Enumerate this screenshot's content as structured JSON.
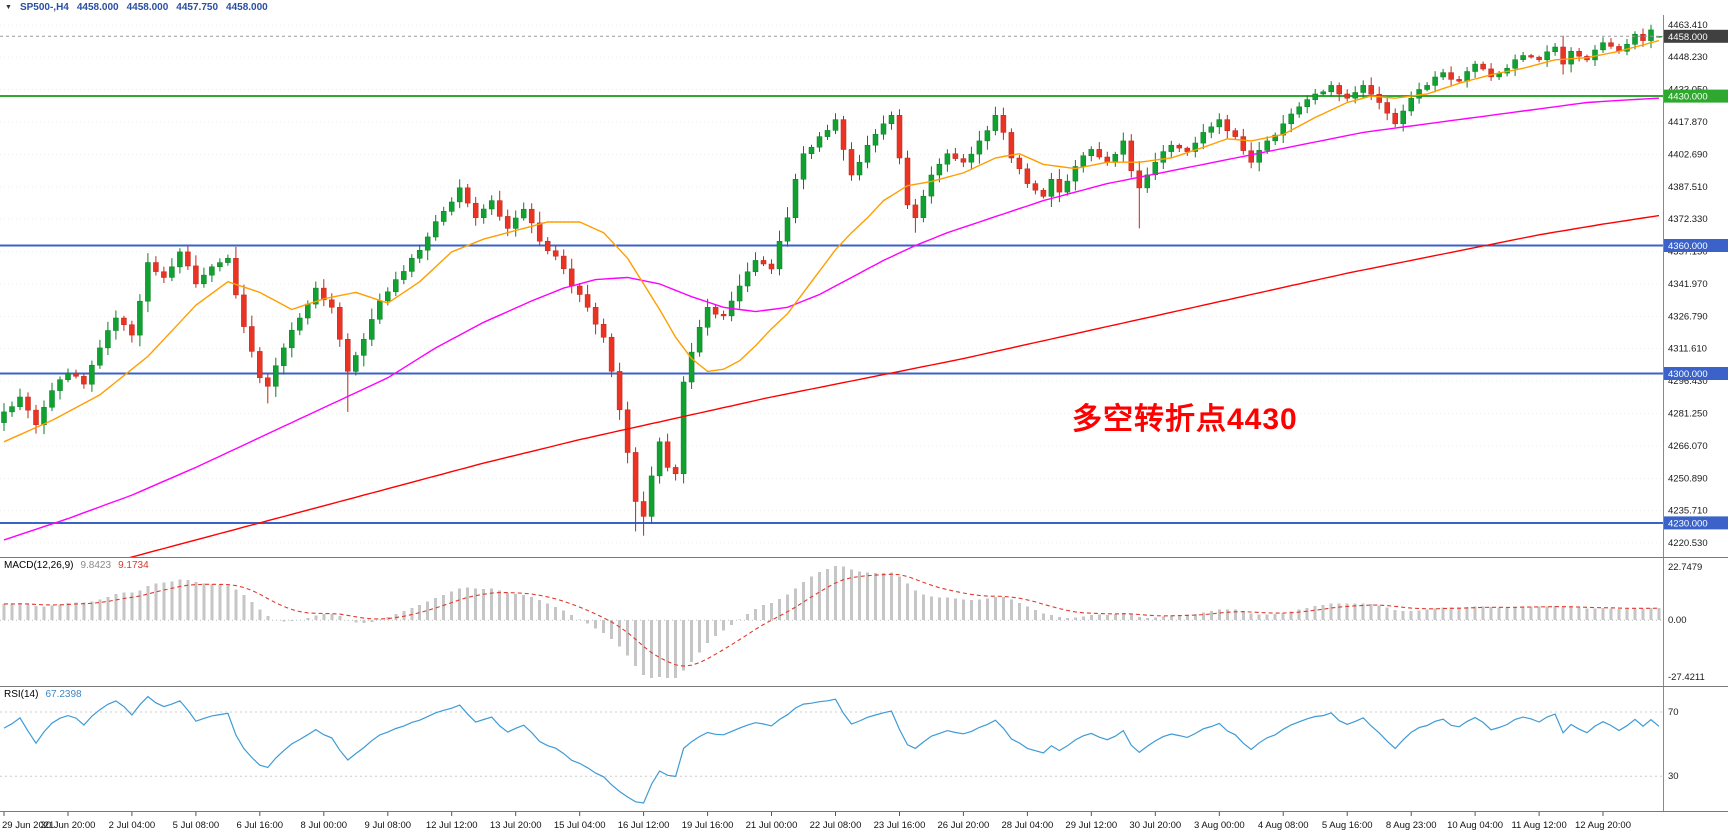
{
  "topbar": {
    "dropdown_icon": "▼",
    "symbol": "SP500-,H4",
    "open": "4458.000",
    "high": "4458.000",
    "low": "4457.750",
    "close": "4458.000"
  },
  "annotation": {
    "text": "多空转折点4430",
    "color": "#FF0000"
  },
  "chart_data": {
    "type": "candlestick",
    "symbol": "SP500-",
    "timeframe": "H4",
    "bars": 208,
    "price_range": [
      4214,
      4468
    ],
    "price_axis_labels": [
      "4463.410",
      "4448.230",
      "4433.050",
      "4417.870",
      "4402.690",
      "4387.510",
      "4372.330",
      "4357.150",
      "4341.970",
      "4326.790",
      "4311.610",
      "4296.430",
      "4281.250",
      "4266.070",
      "4250.890",
      "4235.710",
      "4220.530"
    ],
    "hlines": [
      {
        "price": 4458.0,
        "label": "4458.000",
        "role": "current-price",
        "line_color": "#9a9a9a",
        "tag_color": "#404040",
        "width": 1,
        "dash": "3,3"
      },
      {
        "price": 4430.0,
        "label": "4430.000",
        "role": "level",
        "line_color": "#2EA82E",
        "tag_color": "#2EA82E",
        "width": 2
      },
      {
        "price": 4360.0,
        "label": "4360.000",
        "role": "level",
        "line_color": "#3A62C8",
        "tag_color": "#3A62C8",
        "width": 2
      },
      {
        "price": 4300.0,
        "label": "4300.000",
        "role": "level",
        "line_color": "#3A62C8",
        "tag_color": "#3A62C8",
        "width": 2
      },
      {
        "price": 4230.0,
        "label": "4230.000",
        "role": "level",
        "line_color": "#3A62C8",
        "tag_color": "#3A62C8",
        "width": 2
      }
    ],
    "close_anchors": [
      [
        0,
        4282
      ],
      [
        2,
        4289
      ],
      [
        4,
        4276
      ],
      [
        6,
        4292
      ],
      [
        8,
        4300
      ],
      [
        10,
        4295
      ],
      [
        12,
        4312
      ],
      [
        14,
        4326
      ],
      [
        16,
        4318
      ],
      [
        18,
        4352
      ],
      [
        20,
        4345
      ],
      [
        22,
        4357
      ],
      [
        24,
        4342
      ],
      [
        26,
        4350
      ],
      [
        28,
        4354
      ],
      [
        30,
        4322
      ],
      [
        32,
        4298
      ],
      [
        33,
        4294
      ],
      [
        35,
        4312
      ],
      [
        37,
        4326
      ],
      [
        39,
        4340
      ],
      [
        41,
        4331
      ],
      [
        42,
        4316
      ],
      [
        43,
        4301
      ],
      [
        45,
        4316
      ],
      [
        47,
        4334
      ],
      [
        49,
        4344
      ],
      [
        51,
        4354
      ],
      [
        53,
        4364
      ],
      [
        55,
        4376
      ],
      [
        57,
        4387
      ],
      [
        59,
        4373
      ],
      [
        61,
        4381
      ],
      [
        63,
        4368
      ],
      [
        65,
        4377
      ],
      [
        67,
        4362
      ],
      [
        69,
        4355
      ],
      [
        71,
        4341
      ],
      [
        73,
        4331
      ],
      [
        75,
        4317
      ],
      [
        76,
        4301
      ],
      [
        77,
        4283
      ],
      [
        78,
        4263
      ],
      [
        79,
        4240
      ],
      [
        80,
        4233
      ],
      [
        81,
        4252
      ],
      [
        82,
        4268
      ],
      [
        83,
        4256
      ],
      [
        84,
        4253
      ],
      [
        85,
        4296
      ],
      [
        86,
        4310
      ],
      [
        88,
        4331
      ],
      [
        90,
        4327
      ],
      [
        92,
        4341
      ],
      [
        94,
        4353
      ],
      [
        96,
        4349
      ],
      [
        97,
        4362
      ],
      [
        98,
        4373
      ],
      [
        99,
        4391
      ],
      [
        100,
        4403
      ],
      [
        102,
        4411
      ],
      [
        104,
        4419
      ],
      [
        105,
        4405
      ],
      [
        106,
        4393
      ],
      [
        107,
        4399
      ],
      [
        108,
        4407
      ],
      [
        110,
        4417
      ],
      [
        111,
        4421
      ],
      [
        112,
        4401
      ],
      [
        113,
        4379
      ],
      [
        114,
        4373
      ],
      [
        116,
        4393
      ],
      [
        118,
        4403
      ],
      [
        120,
        4399
      ],
      [
        122,
        4409
      ],
      [
        124,
        4421
      ],
      [
        125,
        4413
      ],
      [
        126,
        4401
      ],
      [
        128,
        4389
      ],
      [
        130,
        4383
      ],
      [
        131,
        4391
      ],
      [
        132,
        4385
      ],
      [
        134,
        4397
      ],
      [
        136,
        4405
      ],
      [
        138,
        4399
      ],
      [
        140,
        4409
      ],
      [
        141,
        4395
      ],
      [
        142,
        4387
      ],
      [
        144,
        4399
      ],
      [
        146,
        4407
      ],
      [
        148,
        4404
      ],
      [
        150,
        4413
      ],
      [
        152,
        4419
      ],
      [
        154,
        4411
      ],
      [
        156,
        4399
      ],
      [
        158,
        4409
      ],
      [
        160,
        4417
      ],
      [
        162,
        4425
      ],
      [
        164,
        4431
      ],
      [
        166,
        4435
      ],
      [
        168,
        4429
      ],
      [
        170,
        4435
      ],
      [
        172,
        4427
      ],
      [
        174,
        4417
      ],
      [
        175,
        4423
      ],
      [
        176,
        4429
      ],
      [
        178,
        4435
      ],
      [
        180,
        4441
      ],
      [
        182,
        4437
      ],
      [
        184,
        4445
      ],
      [
        186,
        4439
      ],
      [
        188,
        4443
      ],
      [
        190,
        4449
      ],
      [
        192,
        4447
      ],
      [
        194,
        4453
      ],
      [
        195,
        4445
      ],
      [
        196,
        4451
      ],
      [
        198,
        4447
      ],
      [
        200,
        4455
      ],
      [
        202,
        4451
      ],
      [
        204,
        4459
      ],
      [
        205,
        4456
      ],
      [
        206,
        4461
      ],
      [
        207,
        4458
      ]
    ],
    "wick_lows": {
      "33": 4286,
      "43": 4282,
      "79": 4226,
      "80": 4224,
      "114": 4366,
      "142": 4368
    },
    "wick_highs": {
      "57": 4391,
      "206": 4463.4
    },
    "last_bar": {
      "o": 4458.0,
      "h": 4458.0,
      "l": 4457.75,
      "c": 4458.0
    },
    "ma": {
      "fast": {
        "color": "#FF9E00",
        "anchors": [
          [
            0,
            4268
          ],
          [
            6,
            4278
          ],
          [
            12,
            4290
          ],
          [
            18,
            4308
          ],
          [
            24,
            4332
          ],
          [
            28,
            4343
          ],
          [
            32,
            4338
          ],
          [
            36,
            4330
          ],
          [
            40,
            4335
          ],
          [
            44,
            4338
          ],
          [
            48,
            4333
          ],
          [
            52,
            4343
          ],
          [
            56,
            4357
          ],
          [
            60,
            4363
          ],
          [
            64,
            4367
          ],
          [
            68,
            4371
          ],
          [
            72,
            4371
          ],
          [
            75,
            4366
          ],
          [
            78,
            4354
          ],
          [
            80,
            4342
          ],
          [
            82,
            4330
          ],
          [
            84,
            4317
          ],
          [
            86,
            4307
          ],
          [
            88,
            4301
          ],
          [
            90,
            4302
          ],
          [
            92,
            4306
          ],
          [
            94,
            4313
          ],
          [
            96,
            4321
          ],
          [
            98,
            4328
          ],
          [
            100,
            4338
          ],
          [
            102,
            4348
          ],
          [
            104,
            4358
          ],
          [
            106,
            4366
          ],
          [
            108,
            4373
          ],
          [
            110,
            4381
          ],
          [
            113,
            4388
          ],
          [
            116,
            4390
          ],
          [
            120,
            4394
          ],
          [
            124,
            4401
          ],
          [
            127,
            4403
          ],
          [
            130,
            4398
          ],
          [
            134,
            4396
          ],
          [
            138,
            4399
          ],
          [
            142,
            4399
          ],
          [
            146,
            4401
          ],
          [
            150,
            4406
          ],
          [
            153,
            4410
          ],
          [
            156,
            4409
          ],
          [
            160,
            4412
          ],
          [
            164,
            4420
          ],
          [
            168,
            4427
          ],
          [
            171,
            4430
          ],
          [
            174,
            4429
          ],
          [
            178,
            4431
          ],
          [
            182,
            4436
          ],
          [
            186,
            4440
          ],
          [
            190,
            4443
          ],
          [
            194,
            4447
          ],
          [
            198,
            4448
          ],
          [
            202,
            4451
          ],
          [
            207,
            4456
          ]
        ]
      },
      "mid": {
        "color": "#FF00FF",
        "anchors": [
          [
            0,
            4222
          ],
          [
            8,
            4232
          ],
          [
            16,
            4243
          ],
          [
            24,
            4256
          ],
          [
            32,
            4270
          ],
          [
            40,
            4284
          ],
          [
            48,
            4298
          ],
          [
            54,
            4312
          ],
          [
            60,
            4324
          ],
          [
            66,
            4334
          ],
          [
            70,
            4340
          ],
          [
            74,
            4344
          ],
          [
            78,
            4345
          ],
          [
            82,
            4342
          ],
          [
            86,
            4336
          ],
          [
            90,
            4331
          ],
          [
            94,
            4329
          ],
          [
            98,
            4331
          ],
          [
            102,
            4337
          ],
          [
            106,
            4345
          ],
          [
            110,
            4353
          ],
          [
            114,
            4360
          ],
          [
            118,
            4366
          ],
          [
            122,
            4371
          ],
          [
            126,
            4376
          ],
          [
            130,
            4381
          ],
          [
            134,
            4385
          ],
          [
            138,
            4389
          ],
          [
            142,
            4392
          ],
          [
            146,
            4395
          ],
          [
            150,
            4398
          ],
          [
            154,
            4401
          ],
          [
            158,
            4404
          ],
          [
            162,
            4407
          ],
          [
            166,
            4410
          ],
          [
            170,
            4413
          ],
          [
            174,
            4415
          ],
          [
            178,
            4417
          ],
          [
            182,
            4419
          ],
          [
            186,
            4421
          ],
          [
            190,
            4423
          ],
          [
            194,
            4425
          ],
          [
            198,
            4427
          ],
          [
            202,
            4428
          ],
          [
            207,
            4429
          ]
        ]
      },
      "slow": {
        "color": "#FF0000",
        "anchors": [
          [
            0,
            4192
          ],
          [
            12,
            4210
          ],
          [
            24,
            4222
          ],
          [
            36,
            4234
          ],
          [
            48,
            4246
          ],
          [
            60,
            4258
          ],
          [
            72,
            4269
          ],
          [
            84,
            4279
          ],
          [
            96,
            4289
          ],
          [
            108,
            4298
          ],
          [
            120,
            4307
          ],
          [
            132,
            4317
          ],
          [
            144,
            4327
          ],
          [
            156,
            4337
          ],
          [
            168,
            4347
          ],
          [
            180,
            4356
          ],
          [
            192,
            4365
          ],
          [
            200,
            4370
          ],
          [
            207,
            4374
          ]
        ]
      }
    },
    "macd": {
      "name": "MACD(12,26,9)",
      "value_main": "9.8423",
      "value_signal": "9.1734",
      "axis_labels": [
        "22.7479",
        "0.00",
        "-27.4211"
      ],
      "hist_color": "#c6c6c6",
      "signal_color": "#E03A2F"
    },
    "rsi": {
      "name": "RSI(14)",
      "value": "67.2398",
      "levels": [
        "70",
        "30"
      ],
      "color": "#3E9BD6"
    },
    "time_labels": [
      "29 Jun 2021",
      "30 Jun 20:00",
      "2 Jul 04:00",
      "5 Jul 08:00",
      "6 Jul 16:00",
      "8 Jul 00:00",
      "9 Jul 08:00",
      "12 Jul 12:00",
      "13 Jul 20:00",
      "15 Jul 04:00",
      "16 Jul 12:00",
      "19 Jul 16:00",
      "21 Jul 00:00",
      "22 Jul 08:00",
      "23 Jul 16:00",
      "26 Jul 20:00",
      "28 Jul 04:00",
      "29 Jul 12:00",
      "30 Jul 20:00",
      "3 Aug 00:00",
      "4 Aug 08:00",
      "5 Aug 16:00",
      "8 Aug 23:00",
      "10 Aug 04:00",
      "11 Aug 12:00",
      "12 Aug 20:00"
    ],
    "candle_colors": {
      "up": "#10A231",
      "up_stroke": "#0A7E24",
      "down": "#EA3323",
      "down_stroke": "#BF271A"
    },
    "grid_color": "#efefef",
    "separator_color": "#8a8a8a",
    "axis_text_color": "#1a1a1a"
  }
}
